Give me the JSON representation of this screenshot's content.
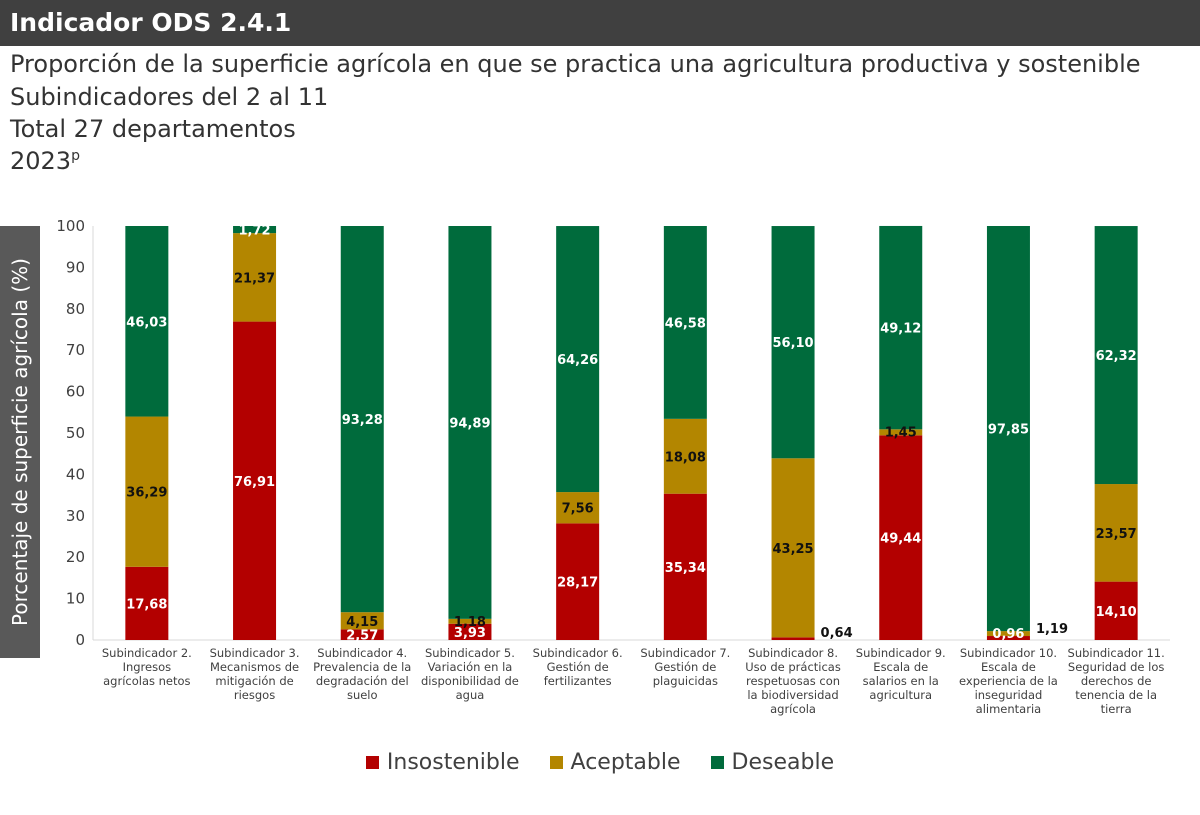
{
  "header": {
    "title": "Indicador ODS 2.4.1"
  },
  "subtitle": [
    "Proporción de la superficie agrícola en que se practica una agricultura productiva y sostenible",
    "Subindicadores del 2 al 11",
    "Total 27 departamentos",
    "2023"
  ],
  "year_superscript": "p",
  "chart_data": {
    "type": "bar",
    "stacked": true,
    "ylabel": "Porcentaje de superficie agrícola (%)",
    "ylim": [
      0,
      100
    ],
    "yticks": [
      0,
      10,
      20,
      30,
      40,
      50,
      60,
      70,
      80,
      90,
      100
    ],
    "categories": [
      "Subindicador 2. Ingresos agrícolas netos",
      "Subindicador 3. Mecanismos de mitigación de riesgos",
      "Subindicador  4. Prevalencia de la degradación del suelo",
      "Subindicador 5. Variación en la disponibilidad de agua",
      "Subindicador 6. Gestión de fertilizantes",
      "Subindicador 7. Gestión de plaguicidas",
      "Subindicador 8. Uso de prácticas respetuosas con la biodiversidad agrícola",
      "Subindicador 9. Escala de salarios en la agricultura",
      "Subindicador 10. Escala de experiencia de la inseguridad alimentaria",
      "Subindicador 11. Seguridad de los derechos de tenencia de la tierra"
    ],
    "series": [
      {
        "name": "Insostenible",
        "color": "#b30000",
        "values": [
          17.68,
          76.91,
          2.57,
          3.93,
          28.17,
          35.34,
          0.64,
          49.44,
          0.96,
          14.1
        ]
      },
      {
        "name": "Aceptable",
        "color": "#b38600",
        "values": [
          36.29,
          21.37,
          4.15,
          1.18,
          7.56,
          18.08,
          43.25,
          1.45,
          1.19,
          23.57
        ]
      },
      {
        "name": "Deseable",
        "color": "#006b3c",
        "values": [
          46.03,
          1.72,
          93.28,
          94.89,
          64.26,
          46.58,
          56.1,
          49.12,
          97.85,
          62.32
        ]
      }
    ],
    "legend": "bottom"
  }
}
